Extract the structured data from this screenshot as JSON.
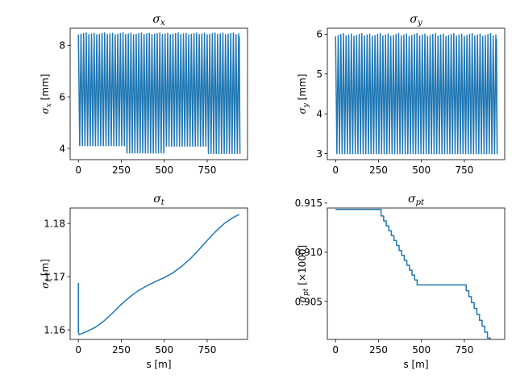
{
  "chart_data": [
    {
      "type": "line",
      "title": "σx",
      "title_main": "σ",
      "title_sub": "x",
      "xlabel": "",
      "ylabel": "σx [mm]",
      "ylabel_main": "σ",
      "ylabel_sub": "x",
      "ylabel_unit": " [mm]",
      "xlim": [
        -48,
        985
      ],
      "ylim": [
        3.56,
        8.67
      ],
      "xticks": [
        0,
        250,
        500,
        750
      ],
      "xtick_labels": [
        "0",
        "250",
        "500",
        "750"
      ],
      "yticks": [
        4,
        6,
        8
      ],
      "ytick_labels": [
        "4",
        "6",
        "8"
      ],
      "color": "#1f77b4",
      "oscillation": {
        "s_max": 937,
        "period": 15.3,
        "high": 8.45,
        "low": 4.1
      },
      "low_segments": [
        {
          "s_start": 262,
          "s_end": 490,
          "low": 3.82
        },
        {
          "s_start": 490,
          "s_end": 745,
          "low": 4.08
        },
        {
          "s_start": 745,
          "s_end": 937,
          "low": 3.8
        }
      ],
      "grid": false
    },
    {
      "type": "line",
      "title": "σy",
      "title_main": "σ",
      "title_sub": "y",
      "xlabel": "",
      "ylabel": "σy [mm]",
      "ylabel_main": "σ",
      "ylabel_sub": "y",
      "ylabel_unit": " [mm]",
      "xlim": [
        -48,
        985
      ],
      "ylim": [
        2.85,
        6.15
      ],
      "xticks": [
        0,
        250,
        500,
        750
      ],
      "xtick_labels": [
        "0",
        "250",
        "500",
        "750"
      ],
      "yticks": [
        3,
        4,
        5,
        6
      ],
      "ytick_labels": [
        "3",
        "4",
        "5",
        "6"
      ],
      "color": "#1f77b4",
      "oscillation": {
        "s_max": 937,
        "period": 15.3,
        "high": 5.98,
        "low": 3.0
      },
      "grid": false
    },
    {
      "type": "line",
      "title": "σt",
      "title_main": "σ",
      "title_sub": "t",
      "xlabel": "s [m]",
      "ylabel": "σt [m]",
      "ylabel_main": "σ",
      "ylabel_sub": "t",
      "ylabel_unit": " [m]",
      "xlim": [
        -48,
        985
      ],
      "ylim": [
        1.1582,
        1.1829
      ],
      "xticks": [
        0,
        250,
        500,
        750
      ],
      "xtick_labels": [
        "0",
        "250",
        "500",
        "750"
      ],
      "yticks": [
        1.16,
        1.17,
        1.18
      ],
      "ytick_labels": [
        "1.16",
        "1.17",
        "1.18"
      ],
      "color": "#1f77b4",
      "x": [
        0,
        0,
        5,
        50,
        100,
        150,
        200,
        250,
        300,
        350,
        400,
        450,
        500,
        550,
        600,
        650,
        700,
        750,
        800,
        850,
        900,
        937
      ],
      "y": [
        1.1688,
        1.1595,
        1.1591,
        1.1597,
        1.1605,
        1.1617,
        1.1632,
        1.1648,
        1.1662,
        1.1674,
        1.1683,
        1.1691,
        1.1698,
        1.1707,
        1.1719,
        1.1733,
        1.175,
        1.1768,
        1.1785,
        1.18,
        1.1811,
        1.1817
      ],
      "grid": false
    },
    {
      "type": "line",
      "title": "σpt",
      "title_main": "σ",
      "title_sub": "pt",
      "xlabel": "s [m]",
      "ylabel": "σpt [×1000]",
      "ylabel_main": "σ",
      "ylabel_sub": "pt",
      "ylabel_unit": " [×1000]",
      "xlim": [
        -48,
        985
      ],
      "ylim": [
        0.90115,
        0.9145
      ],
      "xticks": [
        0,
        250,
        500,
        750
      ],
      "xtick_labels": [
        "0",
        "250",
        "500",
        "750"
      ],
      "yticks": [
        0.905,
        0.91,
        0.915
      ],
      "ytick_labels": [
        "0.905",
        "0.910",
        "0.915"
      ],
      "color": "#1f77b4",
      "step": true,
      "x": [
        0,
        265,
        280,
        295,
        310,
        325,
        340,
        355,
        370,
        385,
        400,
        415,
        430,
        445,
        460,
        475,
        745,
        755,
        770,
        785,
        800,
        815,
        830,
        845,
        860,
        875,
        890,
        905,
        920,
        935
      ],
      "y": [
        0.91436,
        0.91369,
        0.91302,
        0.91236,
        0.91169,
        0.91102,
        0.91035,
        0.90968,
        0.90902,
        0.90835,
        0.90768,
        0.90701,
        0.90634,
        0.90568,
        0.90501,
        0.9087,
        0.9087,
        0.90777,
        0.90695,
        0.90613,
        0.90531,
        0.90449,
        0.90367,
        0.90285,
        0.90203,
        0.90121,
        0.904,
        0.90318,
        0.90236,
        0.90154
      ],
      "grid": false
    }
  ]
}
